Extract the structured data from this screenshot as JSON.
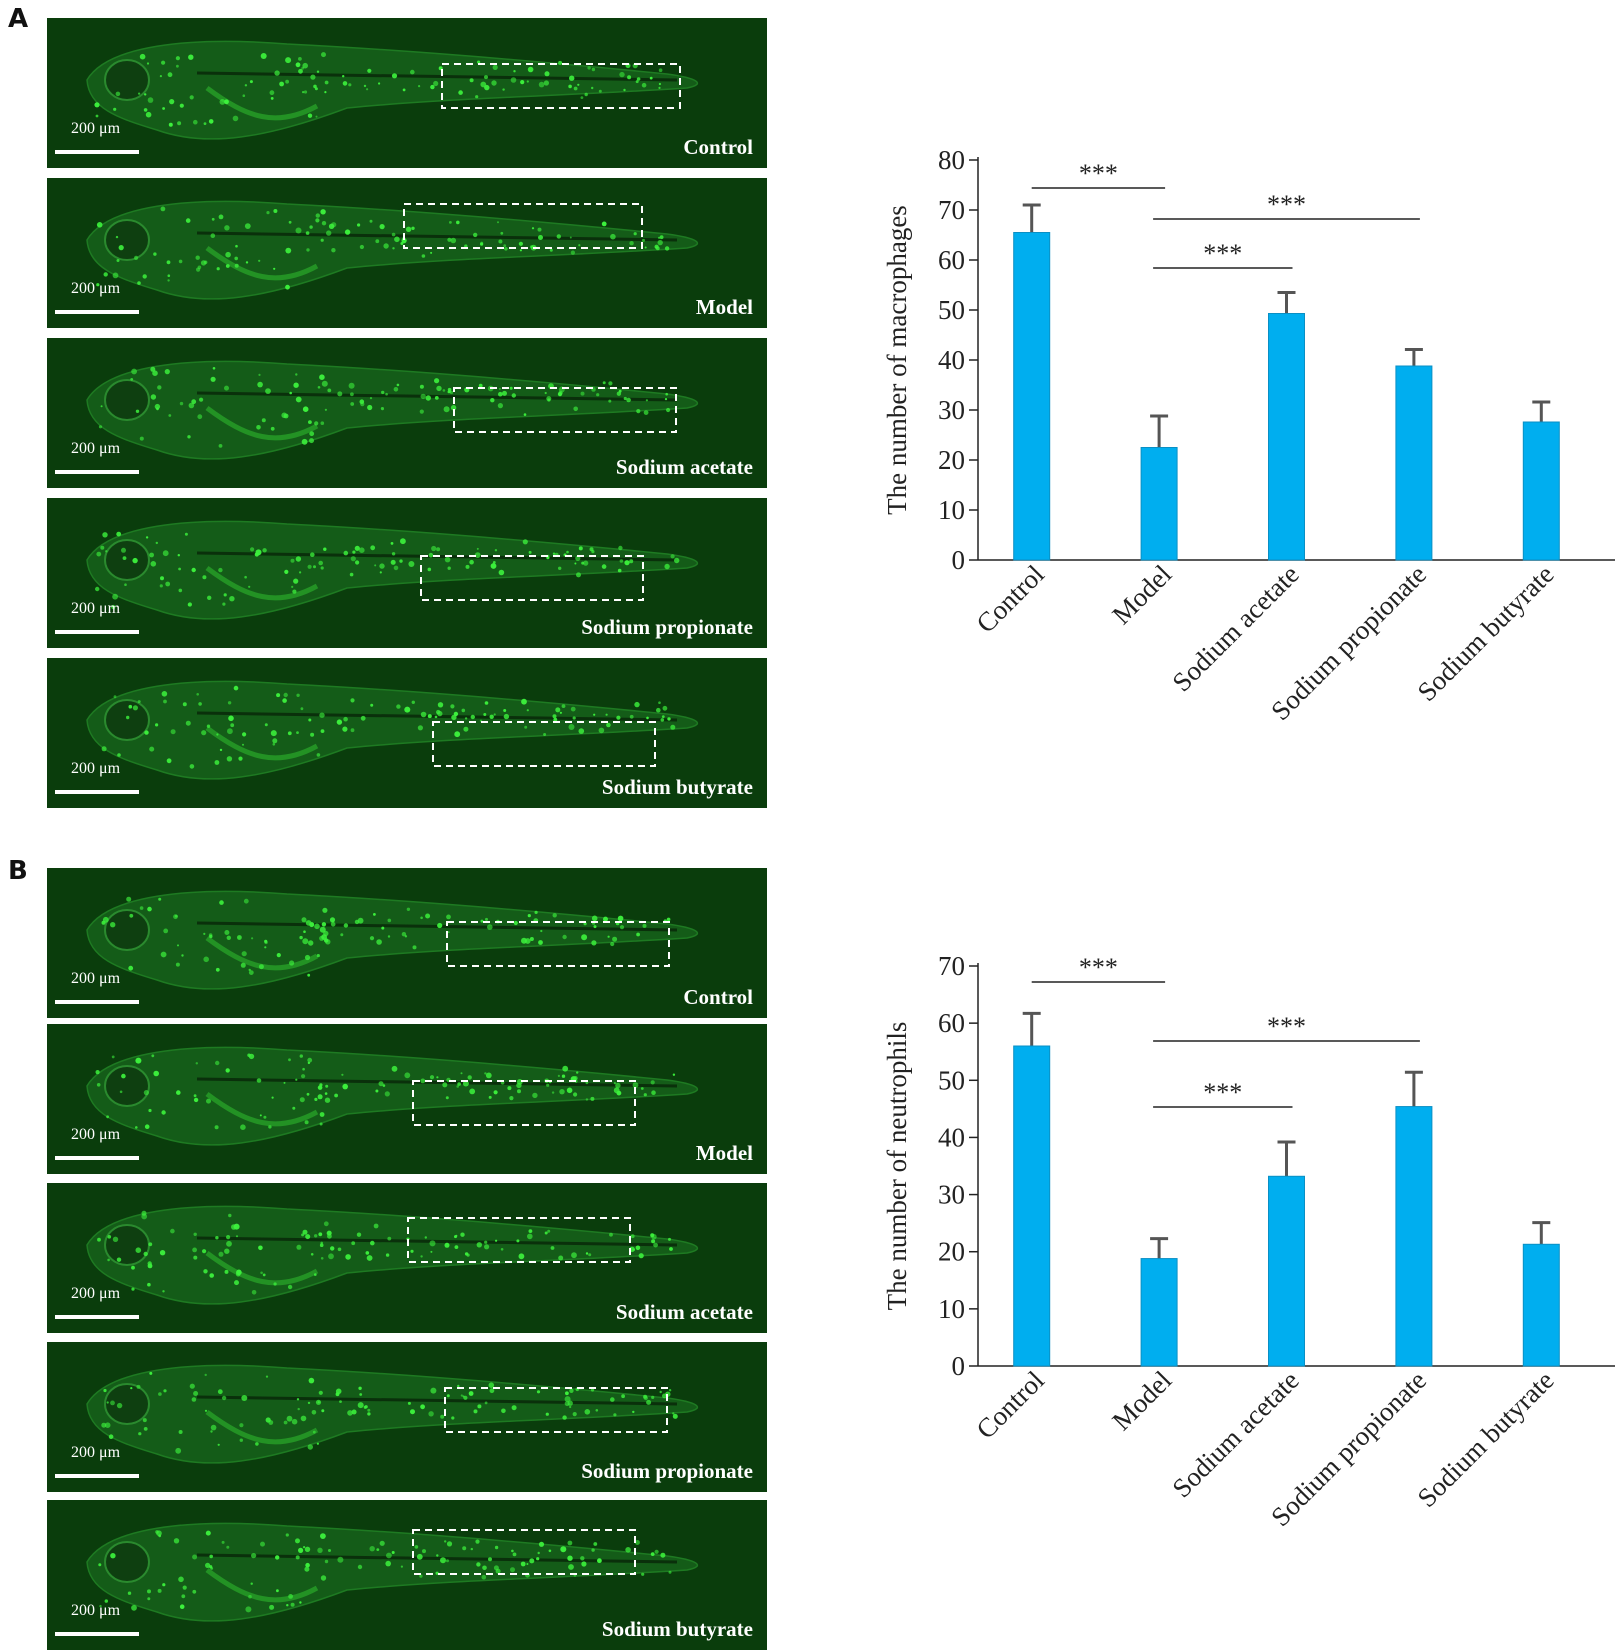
{
  "figure": {
    "panels": [
      {
        "letter": "A",
        "images": [
          {
            "label": "Control",
            "scale": "200 μm"
          },
          {
            "label": "Model",
            "scale": "200 μm"
          },
          {
            "label": "Sodium acetate",
            "scale": "200 μm"
          },
          {
            "label": "Sodium propionate",
            "scale": "200 μm"
          },
          {
            "label": "Sodium butyrate",
            "scale": "200 μm"
          }
        ]
      },
      {
        "letter": "B",
        "images": [
          {
            "label": "Control",
            "scale": "200 μm"
          },
          {
            "label": "Model",
            "scale": "200 μm"
          },
          {
            "label": "Sodium acetate",
            "scale": "200 μm"
          },
          {
            "label": "Sodium propionate",
            "scale": "200 μm"
          },
          {
            "label": "Sodium butyrate",
            "scale": "200 μm"
          }
        ]
      }
    ]
  },
  "colors": {
    "bar": "#00aeef",
    "error": "#555555",
    "fish_bg": "#0a3d0c",
    "fish_cells": "#3cf03c"
  },
  "chart_data": [
    {
      "type": "bar",
      "categories": [
        "Control",
        "Model",
        "Sodium acetate",
        "Sodium propionate",
        "Sodium butyrate"
      ],
      "values": [
        65.5,
        22.5,
        49.3,
        38.8,
        27.6
      ],
      "errors": [
        5.5,
        6.3,
        4.2,
        3.3,
        4.0
      ],
      "title": "",
      "xlabel": "",
      "ylabel": "The number of macrophages",
      "ylim": [
        0,
        80
      ],
      "yticks": [
        "0",
        "10",
        "20",
        "30",
        "40",
        "50",
        "60",
        "70",
        "80"
      ],
      "significance": [
        {
          "from": "Control",
          "to": "Model",
          "label": "***"
        },
        {
          "from": "Model",
          "to": "Sodium propionate",
          "label": "***"
        },
        {
          "from": "Model",
          "to": "Sodium acetate",
          "label": "***"
        }
      ],
      "grid": false
    },
    {
      "type": "bar",
      "categories": [
        "Control",
        "Model",
        "Sodium acetate",
        "Sodium propionate",
        "Sodium butyrate"
      ],
      "values": [
        56.0,
        18.8,
        33.2,
        45.4,
        21.3
      ],
      "errors": [
        5.7,
        3.5,
        6.0,
        6.0,
        3.8
      ],
      "title": "",
      "xlabel": "",
      "ylabel": "The number of neutrophils",
      "ylim": [
        0,
        70
      ],
      "yticks": [
        "0",
        "10",
        "20",
        "30",
        "40",
        "50",
        "60",
        "70"
      ],
      "significance": [
        {
          "from": "Control",
          "to": "Model",
          "label": "***"
        },
        {
          "from": "Model",
          "to": "Sodium propionate",
          "label": "***"
        },
        {
          "from": "Model",
          "to": "Sodium acetate",
          "label": "***"
        }
      ],
      "grid": false
    }
  ]
}
